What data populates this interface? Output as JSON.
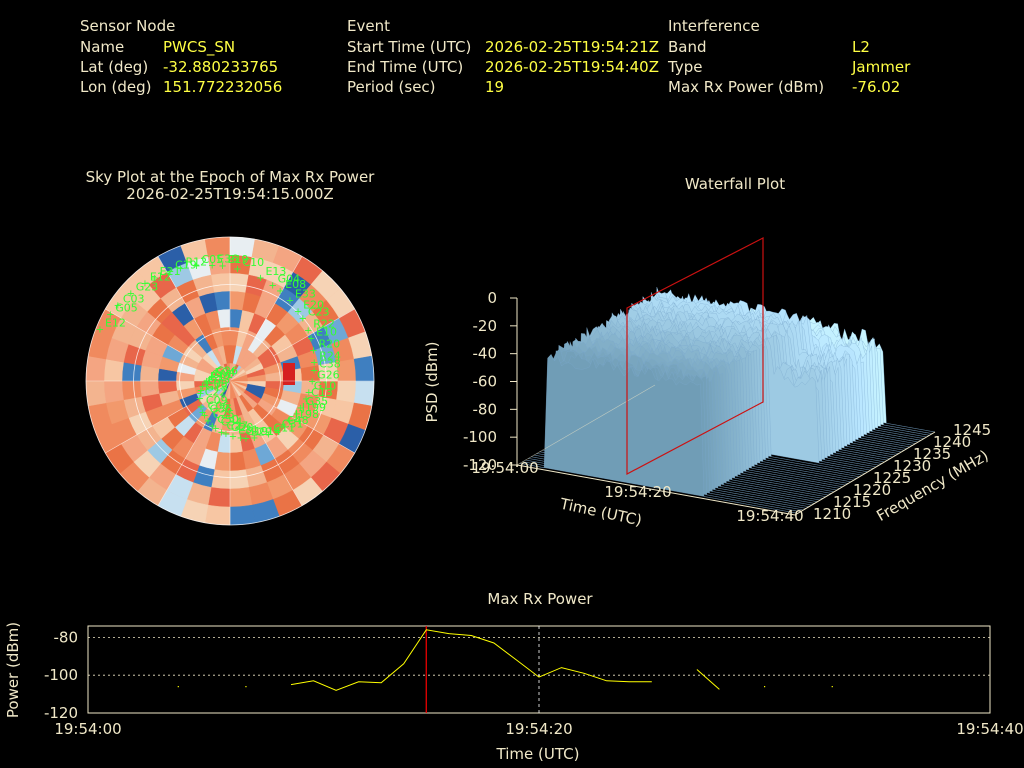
{
  "header": {
    "sensor_title": "Sensor Node",
    "name_label": "Name",
    "name_value": "PWCS_SN",
    "lat_label": "Lat (deg)",
    "lat_value": "-32.880233765",
    "lon_label": "Lon (deg)",
    "lon_value": "151.772232056",
    "event_title": "Event",
    "start_label": "Start Time (UTC)",
    "start_value": "2026-02-25T19:54:21Z",
    "end_label": "End Time (UTC)",
    "end_value": "2026-02-25T19:54:40Z",
    "period_label": "Period (sec)",
    "period_value": "19",
    "interf_title": "Interference",
    "band_label": "Band",
    "band_value": "L2",
    "type_label": "Type",
    "type_value": "Jammer",
    "maxrx_label": "Max Rx Power (dBm)",
    "maxrx_value": "-76.02"
  },
  "skyplot": {
    "title1": "Sky Plot at the Epoch of Max Rx Power",
    "title2": "2026-02-25T19:54:15.000Z",
    "satellites": [
      "C26",
      "E10",
      "C50",
      "R12",
      "J199",
      "C08",
      "E08",
      "G19",
      "C03",
      "C38",
      "C06",
      "E19",
      "C31",
      "C01",
      "C23",
      "C27",
      "E21",
      "C13",
      "C22",
      "E13",
      "C14",
      "E12",
      "R20",
      "C25",
      "C05",
      "J198",
      "G15",
      "E33",
      "E31",
      "G23",
      "G26",
      "C09",
      "C10",
      "C11",
      "E04",
      "R22",
      "C34",
      "C19",
      "G35",
      "G13",
      "G04",
      "E29",
      "G05",
      "R24",
      "G36",
      "E36",
      "C48",
      "R17",
      "E20",
      "G20",
      "E12",
      "G10"
    ]
  },
  "waterfall": {
    "title": "Waterfall Plot",
    "psd_ticks": [
      "0",
      "-20",
      "-40",
      "-60",
      "-80",
      "-100",
      "-120"
    ],
    "psd_label": "PSD (dBm)",
    "time_ticks": [
      "19:54:00",
      "19:54:20",
      "19:54:40"
    ],
    "time_label": "Time (UTC)",
    "freq_ticks": [
      "1210",
      "1215",
      "1220",
      "1225",
      "1230",
      "1235",
      "1240",
      "1245"
    ],
    "freq_label": "Frequency (MHz)"
  },
  "chart_data": {
    "type": "line",
    "title": "Max Rx Power",
    "xlabel": "Time (UTC)",
    "ylabel": "Power (dBm)",
    "x_tick_labels": [
      "19:54:00",
      "19:54:20",
      "19:54:40"
    ],
    "y_ticks": [
      -80,
      -100,
      -120
    ],
    "xlim": [
      0,
      40
    ],
    "ylim": [
      -120,
      -74
    ],
    "grid": true,
    "marker_time_s": 15,
    "event_line_time_s": 20,
    "series": [
      {
        "segments": [
          [
            [
              9,
              -105
            ],
            [
              10,
              -103
            ],
            [
              11,
              -108
            ],
            [
              12,
              -103.5
            ],
            [
              13,
              -104
            ],
            [
              14,
              -94
            ],
            [
              15,
              -76.02
            ],
            [
              16,
              -78
            ],
            [
              17,
              -79
            ],
            [
              18,
              -83
            ],
            [
              19,
              -92
            ],
            [
              20,
              -101
            ],
            [
              21,
              -96
            ],
            [
              22,
              -99
            ],
            [
              23,
              -103
            ],
            [
              24,
              -103.5
            ],
            [
              25,
              -103.5
            ]
          ],
          [
            [
              27,
              -97
            ],
            [
              28,
              -107.5
            ]
          ]
        ],
        "points": [
          [
            4,
            -106
          ],
          [
            7,
            -106
          ],
          [
            30,
            -106
          ],
          [
            33,
            -106
          ]
        ]
      }
    ],
    "line_color": "#ffff00",
    "marker_color": "#ff0000"
  }
}
